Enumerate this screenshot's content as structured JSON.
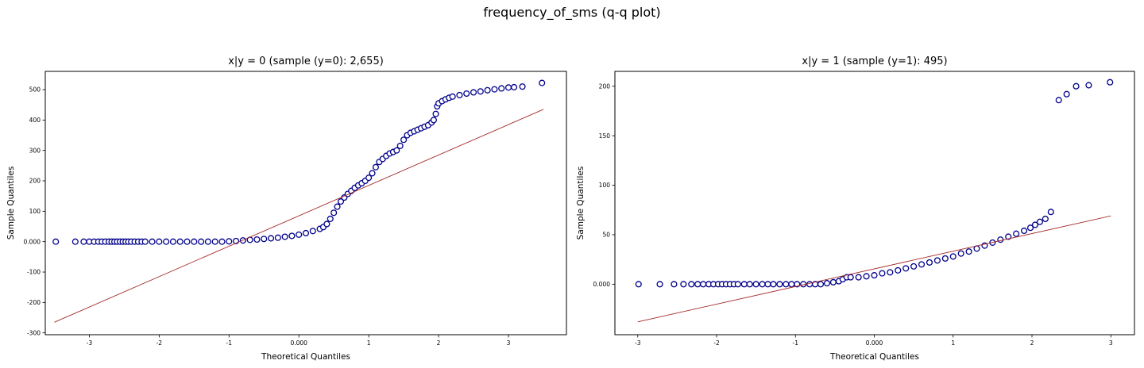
{
  "suptitle": "frequency_of_sms (q-q plot)",
  "colors": {
    "marker_edge": "#00008b",
    "marker_face": "#ffffff",
    "reference_line": "#a52a2a",
    "axes": "#000000"
  },
  "chart_data": [
    {
      "type": "scatter",
      "title": "x|y = 0 (sample (y=0): 2,655)",
      "xlabel": "Theoretical Quantiles",
      "ylabel": "Sample Quantiles",
      "xlim": [
        -3.63,
        3.83
      ],
      "ylim": [
        -306,
        560
      ],
      "xticks": [
        -3,
        -2,
        -1,
        0,
        1,
        2,
        3
      ],
      "xtick_labels": [
        "-3",
        "-2",
        "-1",
        "0.000",
        "1",
        "2",
        "3"
      ],
      "yticks": [
        -300,
        -200,
        -100,
        0,
        100,
        200,
        300,
        400,
        500
      ],
      "ytick_labels": [
        "-300",
        "-200",
        "-100",
        "0.000",
        "100",
        "200",
        "300",
        "400",
        "500"
      ],
      "reference_line": {
        "x": [
          -3.5,
          3.5
        ],
        "y": [
          -265,
          435
        ]
      },
      "series": [
        {
          "points": [
            [
              -3.48,
              0
            ],
            [
              -3.2,
              0
            ],
            [
              -3.08,
              0
            ],
            [
              -3.0,
              0
            ],
            [
              -2.93,
              0
            ],
            [
              -2.87,
              0
            ],
            [
              -2.82,
              0
            ],
            [
              -2.77,
              0
            ],
            [
              -2.72,
              0
            ],
            [
              -2.68,
              0
            ],
            [
              -2.64,
              0
            ],
            [
              -2.6,
              0
            ],
            [
              -2.56,
              0
            ],
            [
              -2.52,
              0
            ],
            [
              -2.48,
              0
            ],
            [
              -2.44,
              0
            ],
            [
              -2.4,
              0
            ],
            [
              -2.35,
              0
            ],
            [
              -2.3,
              0
            ],
            [
              -2.25,
              0
            ],
            [
              -2.2,
              0
            ],
            [
              -2.1,
              0
            ],
            [
              -2.0,
              0
            ],
            [
              -1.9,
              0
            ],
            [
              -1.8,
              0
            ],
            [
              -1.7,
              0
            ],
            [
              -1.6,
              0
            ],
            [
              -1.5,
              0
            ],
            [
              -1.4,
              0
            ],
            [
              -1.3,
              0
            ],
            [
              -1.2,
              0
            ],
            [
              -1.1,
              0
            ],
            [
              -1.0,
              1
            ],
            [
              -0.9,
              2
            ],
            [
              -0.8,
              4
            ],
            [
              -0.7,
              6
            ],
            [
              -0.6,
              7
            ],
            [
              -0.5,
              9
            ],
            [
              -0.4,
              11
            ],
            [
              -0.3,
              13
            ],
            [
              -0.2,
              16
            ],
            [
              -0.1,
              19
            ],
            [
              0.0,
              23
            ],
            [
              0.1,
              28
            ],
            [
              0.2,
              35
            ],
            [
              0.3,
              42
            ],
            [
              0.35,
              48
            ],
            [
              0.4,
              58
            ],
            [
              0.45,
              75
            ],
            [
              0.5,
              95
            ],
            [
              0.55,
              115
            ],
            [
              0.6,
              132
            ],
            [
              0.65,
              145
            ],
            [
              0.7,
              157
            ],
            [
              0.75,
              167
            ],
            [
              0.8,
              177
            ],
            [
              0.85,
              185
            ],
            [
              0.9,
              192
            ],
            [
              0.95,
              200
            ],
            [
              1.0,
              210
            ],
            [
              1.05,
              225
            ],
            [
              1.1,
              245
            ],
            [
              1.15,
              262
            ],
            [
              1.2,
              272
            ],
            [
              1.25,
              282
            ],
            [
              1.3,
              290
            ],
            [
              1.35,
              295
            ],
            [
              1.4,
              300
            ],
            [
              1.45,
              315
            ],
            [
              1.5,
              335
            ],
            [
              1.55,
              350
            ],
            [
              1.6,
              358
            ],
            [
              1.65,
              363
            ],
            [
              1.7,
              368
            ],
            [
              1.75,
              373
            ],
            [
              1.8,
              378
            ],
            [
              1.85,
              383
            ],
            [
              1.9,
              392
            ],
            [
              1.93,
              400
            ],
            [
              1.96,
              420
            ],
            [
              1.98,
              445
            ],
            [
              2.0,
              455
            ],
            [
              2.05,
              462
            ],
            [
              2.1,
              468
            ],
            [
              2.15,
              473
            ],
            [
              2.2,
              477
            ],
            [
              2.3,
              482
            ],
            [
              2.4,
              487
            ],
            [
              2.5,
              491
            ],
            [
              2.6,
              494
            ],
            [
              2.7,
              498
            ],
            [
              2.8,
              501
            ],
            [
              2.9,
              504
            ],
            [
              3.0,
              507
            ],
            [
              3.08,
              508
            ],
            [
              3.2,
              510
            ],
            [
              3.48,
              522
            ]
          ]
        }
      ]
    },
    {
      "type": "scatter",
      "title": "x|y = 1 (sample (y=1): 495)",
      "xlabel": "Theoretical Quantiles",
      "ylabel": "Sample Quantiles",
      "xlim": [
        -3.29,
        3.3
      ],
      "ylim": [
        -51,
        215
      ],
      "xticks": [
        -3,
        -2,
        -1,
        0,
        1,
        2,
        3
      ],
      "xtick_labels": [
        "-3",
        "-2",
        "-1",
        "0.000",
        "1",
        "2",
        "3"
      ],
      "yticks": [
        0,
        50,
        100,
        150,
        200
      ],
      "ytick_labels": [
        "0.000",
        "50",
        "100",
        "150",
        "200"
      ],
      "reference_line": {
        "x": [
          -3.0,
          3.0
        ],
        "y": [
          -38,
          69
        ]
      },
      "series": [
        {
          "points": [
            [
              -2.99,
              0
            ],
            [
              -2.72,
              0
            ],
            [
              -2.54,
              0
            ],
            [
              -2.42,
              0
            ],
            [
              -2.32,
              0
            ],
            [
              -2.24,
              0
            ],
            [
              -2.17,
              0
            ],
            [
              -2.1,
              0
            ],
            [
              -2.04,
              0
            ],
            [
              -1.98,
              0
            ],
            [
              -1.93,
              0
            ],
            [
              -1.88,
              0
            ],
            [
              -1.83,
              0
            ],
            [
              -1.78,
              0
            ],
            [
              -1.73,
              0
            ],
            [
              -1.65,
              0
            ],
            [
              -1.58,
              0
            ],
            [
              -1.5,
              0
            ],
            [
              -1.42,
              0
            ],
            [
              -1.35,
              0
            ],
            [
              -1.28,
              0
            ],
            [
              -1.2,
              0
            ],
            [
              -1.12,
              0
            ],
            [
              -1.05,
              0
            ],
            [
              -0.98,
              0
            ],
            [
              -0.9,
              0
            ],
            [
              -0.82,
              0
            ],
            [
              -0.75,
              0
            ],
            [
              -0.68,
              0
            ],
            [
              -0.6,
              1
            ],
            [
              -0.52,
              2
            ],
            [
              -0.45,
              3
            ],
            [
              -0.4,
              5
            ],
            [
              -0.35,
              7
            ],
            [
              -0.3,
              7
            ],
            [
              -0.2,
              7
            ],
            [
              -0.1,
              8
            ],
            [
              0.0,
              9
            ],
            [
              0.1,
              11
            ],
            [
              0.2,
              12
            ],
            [
              0.3,
              14
            ],
            [
              0.4,
              16
            ],
            [
              0.5,
              18
            ],
            [
              0.6,
              20
            ],
            [
              0.7,
              22
            ],
            [
              0.8,
              24
            ],
            [
              0.9,
              26
            ],
            [
              1.0,
              28
            ],
            [
              1.1,
              31
            ],
            [
              1.2,
              33
            ],
            [
              1.3,
              36
            ],
            [
              1.4,
              39
            ],
            [
              1.5,
              42
            ],
            [
              1.6,
              45
            ],
            [
              1.7,
              48
            ],
            [
              1.8,
              51
            ],
            [
              1.9,
              54
            ],
            [
              1.98,
              57
            ],
            [
              2.04,
              60
            ],
            [
              2.1,
              63
            ],
            [
              2.17,
              66
            ],
            [
              2.24,
              73
            ],
            [
              2.34,
              186
            ],
            [
              2.44,
              192
            ],
            [
              2.56,
              200
            ],
            [
              2.72,
              201
            ],
            [
              2.99,
              204
            ]
          ]
        }
      ]
    }
  ]
}
